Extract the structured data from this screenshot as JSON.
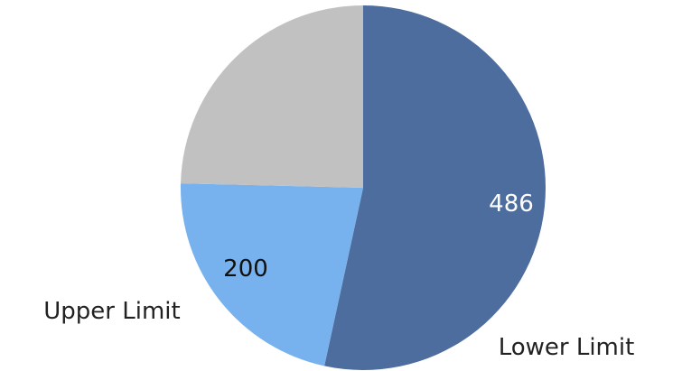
{
  "chart_data": {
    "type": "pie",
    "title": "",
    "start_angle_deg": 0,
    "direction": "clockwise",
    "legend": "none",
    "slices": [
      {
        "category": "Lower Limit",
        "value": 486,
        "value_label": "486",
        "color": "#4c6d9d",
        "label_color": "#ffffff"
      },
      {
        "category": "Upper Limit",
        "value": 200,
        "value_label": "200",
        "color": "#77b2ee",
        "label_color": "#111111"
      },
      {
        "category": "",
        "value": 224,
        "value_label": "",
        "color": "#c1c1c1",
        "label_color": "#111111"
      }
    ]
  }
}
